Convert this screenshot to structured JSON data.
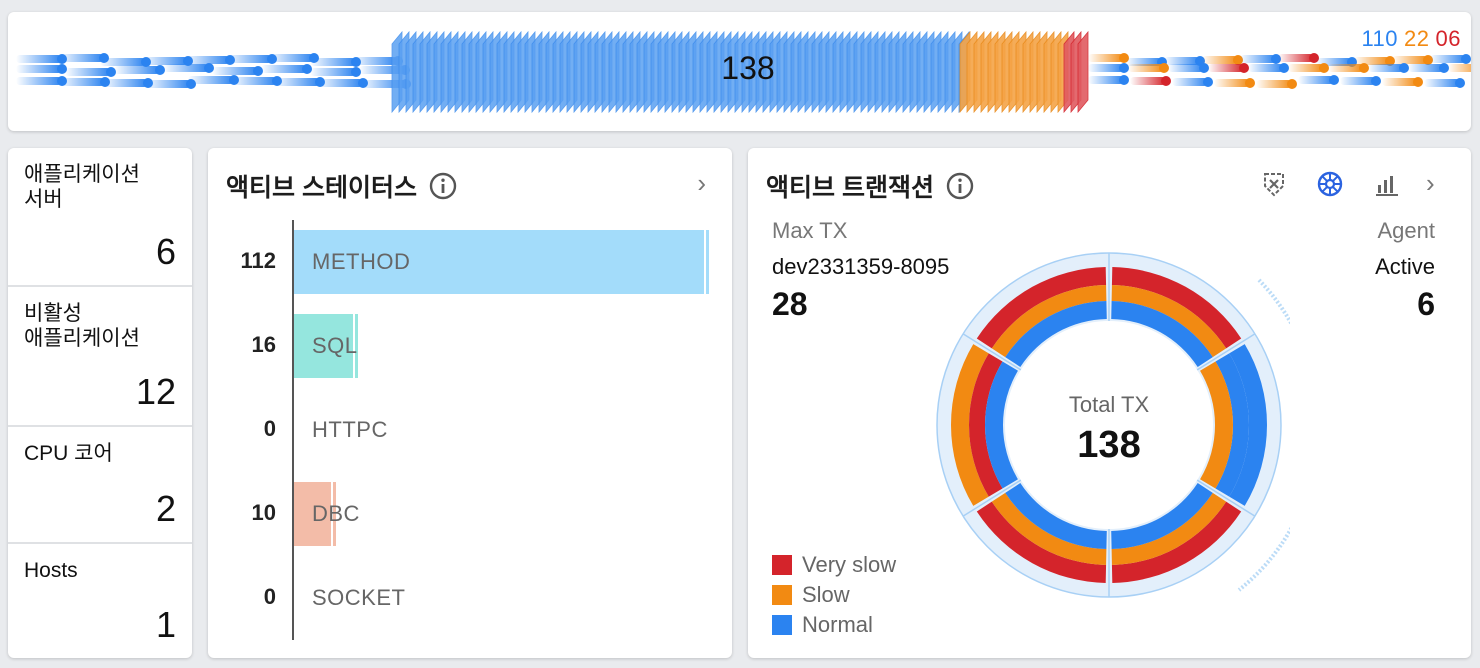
{
  "speed_bar": {
    "total": "138",
    "normal_count": "110",
    "slow_count": "22",
    "very_slow_count": "06",
    "colors": {
      "normal": "#2b83f0",
      "slow": "#f28a12",
      "very_slow": "#d4242b"
    }
  },
  "stats": [
    {
      "label": "애플리케이션\n서버",
      "value": "6"
    },
    {
      "label": "비활성\n애플리케이션",
      "value": "12"
    },
    {
      "label": "CPU 코어",
      "value": "2"
    },
    {
      "label": "Hosts",
      "value": "1"
    }
  ],
  "active_status": {
    "title": "액티브 스테이터스",
    "rows": [
      {
        "name": "METHOD",
        "count": "112",
        "value": 112,
        "color": "#a3dcfa"
      },
      {
        "name": "SQL",
        "count": "16",
        "value": 16,
        "color": "#95e6de"
      },
      {
        "name": "HTTPC",
        "count": "0",
        "value": 0,
        "color": "#cccccc"
      },
      {
        "name": "DBC",
        "count": "10",
        "value": 10,
        "color": "#f3bca8"
      },
      {
        "name": "SOCKET",
        "count": "0",
        "value": 0,
        "color": "#cccccc"
      }
    ]
  },
  "active_transaction": {
    "title": "액티브 트랜잭션",
    "max_tx_label": "Max TX",
    "max_tx_agent": "dev2331359-8095",
    "max_tx_value": "28",
    "agent_label": "Agent",
    "agent_status": "Active",
    "agent_value": "6",
    "total_label": "Total TX",
    "total_value": "138",
    "legend": [
      {
        "label": "Very slow",
        "color": "#d4242b"
      },
      {
        "label": "Slow",
        "color": "#f28a12"
      },
      {
        "label": "Normal",
        "color": "#2b83f0"
      }
    ],
    "icons": [
      "shield-x-icon",
      "helm-icon",
      "bar-chart-icon",
      "chevron-right-icon"
    ]
  }
}
